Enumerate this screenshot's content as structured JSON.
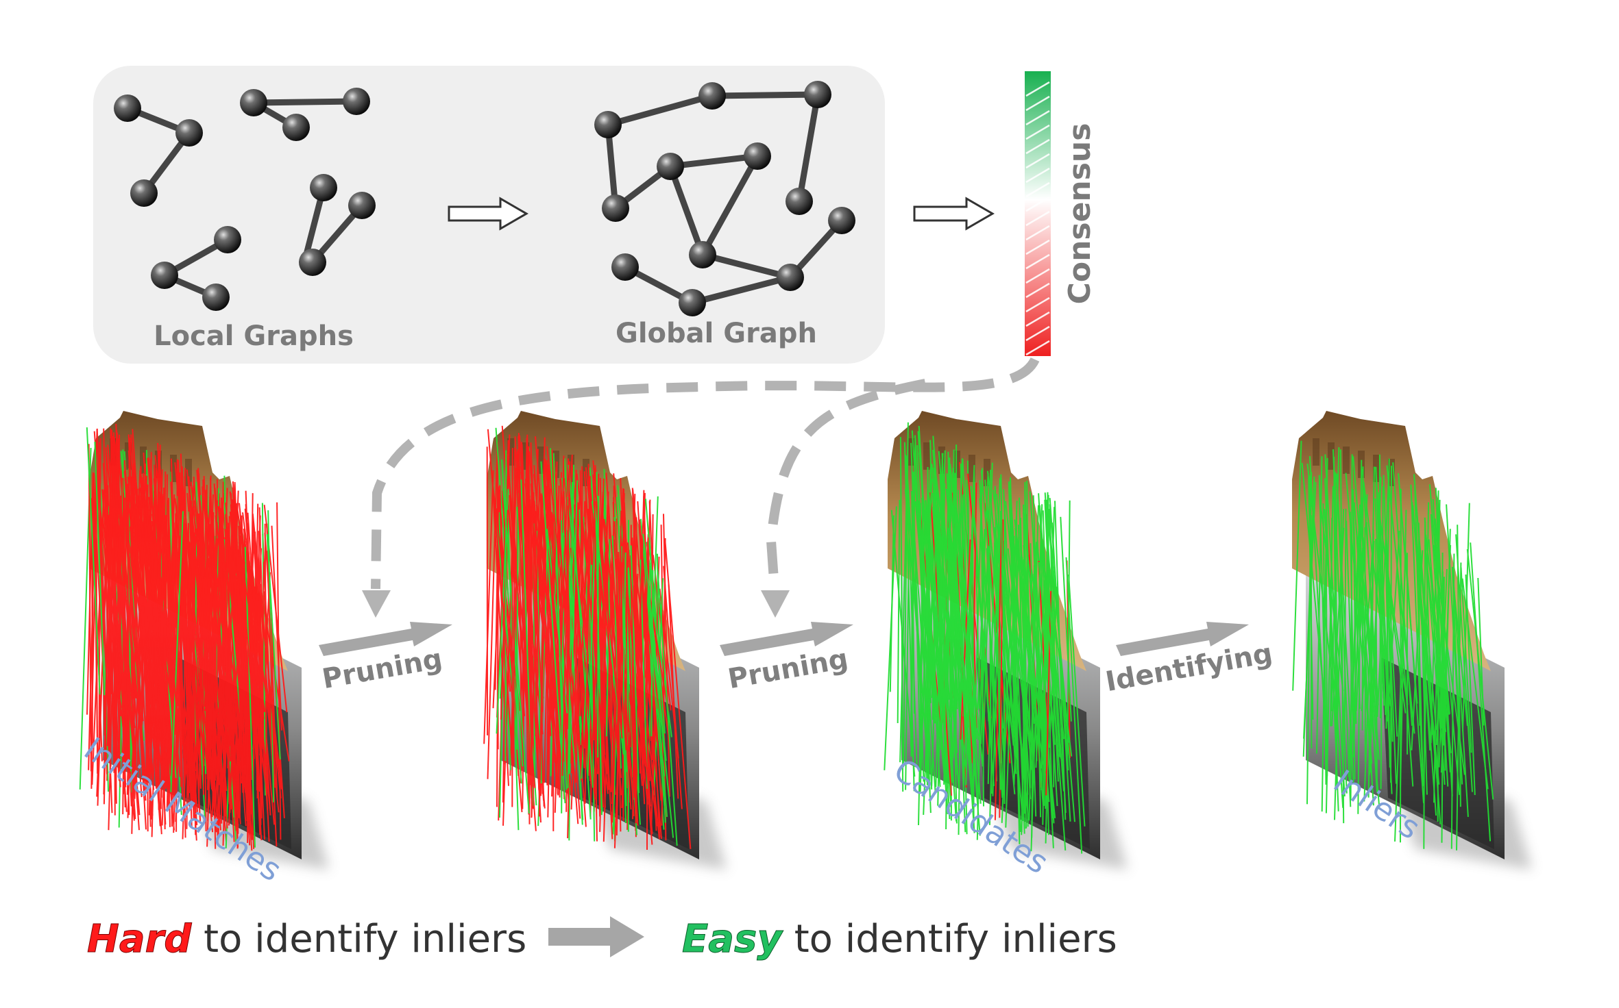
{
  "top_panel": {
    "local_label": "Local Graphs",
    "global_label": "Global Graph"
  },
  "consensus_label": "Consensus",
  "steps": {
    "pruning_1": "Pruning",
    "pruning_2": "Pruning",
    "identifying": "Identifying"
  },
  "panels": {
    "initial": "Initial Matches",
    "candidates": "Candidates",
    "inliers": "Inliers"
  },
  "caption": {
    "hard_word": "Hard",
    "hard_rest": " to identify inliers",
    "easy_word": "Easy",
    "easy_rest": " to identify inliers"
  },
  "colors": {
    "outlier_red": "#ff1a1a",
    "inlier_green": "#22dd33",
    "panel_gray": "#efefef",
    "label_blue": "#7f9fd6",
    "arrow_gray": "#a6a6a6",
    "text_gray": "#7a7a7a"
  },
  "match_mix": {
    "initial": 0.08,
    "pruned": 0.22,
    "candidates": 0.9,
    "inliers": 1.0
  }
}
